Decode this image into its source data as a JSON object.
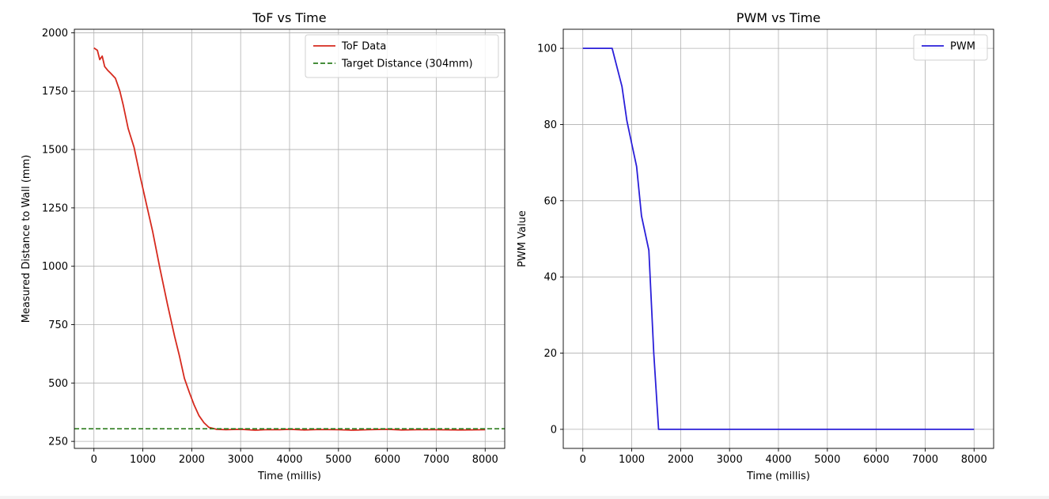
{
  "chart_data": [
    {
      "type": "line",
      "title": "ToF vs Time",
      "xlabel": "Time (millis)",
      "ylabel": "Measured Distance to Wall (mm)",
      "xlim": [
        -400,
        8400
      ],
      "ylim": [
        220,
        2015
      ],
      "xticks": [
        0,
        1000,
        2000,
        3000,
        4000,
        5000,
        6000,
        7000,
        8000
      ],
      "yticks": [
        250,
        500,
        750,
        1000,
        1250,
        1500,
        1750,
        2000
      ],
      "grid": true,
      "legend_position": "top-right",
      "series": [
        {
          "name": "ToF Data",
          "color": "#d62a1e",
          "style": "solid",
          "x": [
            0,
            70,
            120,
            170,
            220,
            280,
            350,
            440,
            530,
            600,
            700,
            820,
            950,
            1080,
            1200,
            1350,
            1500,
            1650,
            1750,
            1850,
            1950,
            2050,
            2150,
            2250,
            2350,
            2500,
            2700,
            3000,
            3300,
            3500,
            3800,
            4000,
            4300,
            4600,
            5000,
            5300,
            5600,
            6000,
            6300,
            6600,
            7000,
            7500,
            8000
          ],
          "y": [
            1935,
            1925,
            1885,
            1900,
            1855,
            1840,
            1825,
            1805,
            1750,
            1690,
            1590,
            1510,
            1380,
            1260,
            1150,
            990,
            840,
            700,
            615,
            520,
            460,
            405,
            360,
            330,
            310,
            302,
            300,
            302,
            298,
            300,
            300,
            302,
            299,
            301,
            300,
            298,
            300,
            302,
            299,
            300,
            300,
            299,
            300
          ]
        },
        {
          "name": "Target Distance (304mm)",
          "color": "#2d7d1f",
          "style": "dashed",
          "y_constant": 304
        }
      ]
    },
    {
      "type": "line",
      "title": "PWM vs Time",
      "xlabel": "Time (millis)",
      "ylabel": "PWM Value",
      "xlim": [
        -400,
        8400
      ],
      "ylim": [
        -5,
        105
      ],
      "xticks": [
        0,
        1000,
        2000,
        3000,
        4000,
        5000,
        6000,
        7000,
        8000
      ],
      "yticks": [
        0,
        20,
        40,
        60,
        80,
        100
      ],
      "grid": true,
      "legend_position": "top-right",
      "series": [
        {
          "name": "PWM",
          "color": "#2a1fd9",
          "style": "solid",
          "x": [
            0,
            600,
            800,
            900,
            1000,
            1100,
            1200,
            1350,
            1450,
            1550,
            8000
          ],
          "y": [
            100,
            100,
            90,
            81,
            75,
            69,
            56,
            47,
            20,
            0,
            0
          ]
        }
      ]
    }
  ]
}
